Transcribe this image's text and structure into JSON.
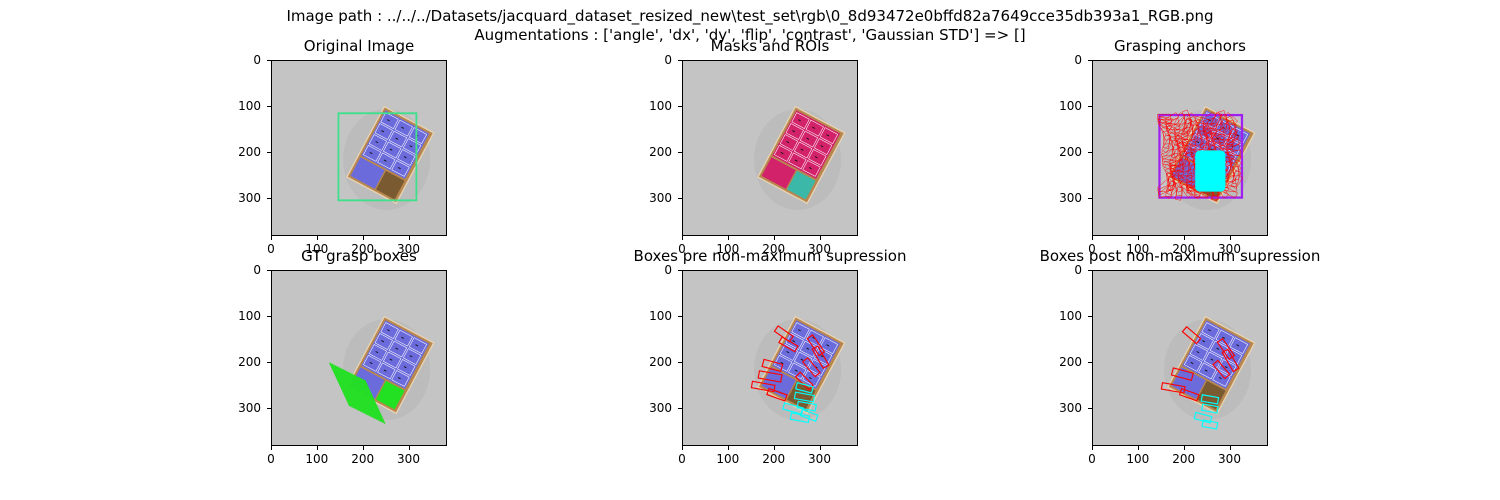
{
  "figure": {
    "suptitle_line1": "Image path : ../../../Datasets/jacquard_dataset_resized_new\\test_set\\rgb\\0_8d93472e0bffd82a7649cce35db393a1_RGB.png",
    "suptitle_line2": "Augmentations : ['angle', 'dx', 'dy', 'flip', 'contrast', 'Gaussian STD'] => []"
  },
  "colors": {
    "background_gray": "#c4c4c4",
    "box_blue": "#6b6bdc",
    "cardboard": "#b8874f",
    "roi_green": "#3ee08c",
    "mask_red": "#d2236a",
    "mask_teal": "#3cb8a8",
    "anchor_red": "#ff0000",
    "anchor_purple": "#a020f0",
    "cyan": "#00ffff",
    "grasp_green": "#22e022"
  },
  "chart_data": [
    {
      "type": "image",
      "title": "Original Image",
      "xlim": [
        0,
        384
      ],
      "ylim": [
        384,
        0
      ],
      "xticks": [
        0,
        100,
        200,
        300
      ],
      "yticks": [
        0,
        100,
        200,
        300
      ]
    },
    {
      "type": "image",
      "title": "Masks and ROIs",
      "xlim": [
        0,
        384
      ],
      "ylim": [
        384,
        0
      ],
      "xticks": [
        0,
        100,
        200,
        300
      ],
      "yticks": [
        0,
        100,
        200,
        300
      ]
    },
    {
      "type": "image",
      "title": "Grasping anchors",
      "xlim": [
        0,
        384
      ],
      "ylim": [
        384,
        0
      ],
      "xticks": [
        0,
        100,
        200,
        300
      ],
      "yticks": [
        0,
        100,
        200,
        300
      ]
    },
    {
      "type": "image",
      "title": "GT grasp boxes",
      "xlim": [
        0,
        384
      ],
      "ylim": [
        384,
        0
      ],
      "xticks": [
        0,
        100,
        200,
        300
      ],
      "yticks": [
        0,
        100,
        200,
        300
      ]
    },
    {
      "type": "image",
      "title": "Boxes pre non-maximum supression",
      "xlim": [
        0,
        384
      ],
      "ylim": [
        384,
        0
      ],
      "xticks": [
        0,
        100,
        200,
        300
      ],
      "yticks": [
        0,
        100,
        200,
        300
      ]
    },
    {
      "type": "image",
      "title": "Boxes post non-maximum supression",
      "xlim": [
        0,
        384
      ],
      "ylim": [
        384,
        0
      ],
      "xticks": [
        0,
        100,
        200,
        300
      ],
      "yticks": [
        0,
        100,
        200,
        300
      ]
    }
  ]
}
